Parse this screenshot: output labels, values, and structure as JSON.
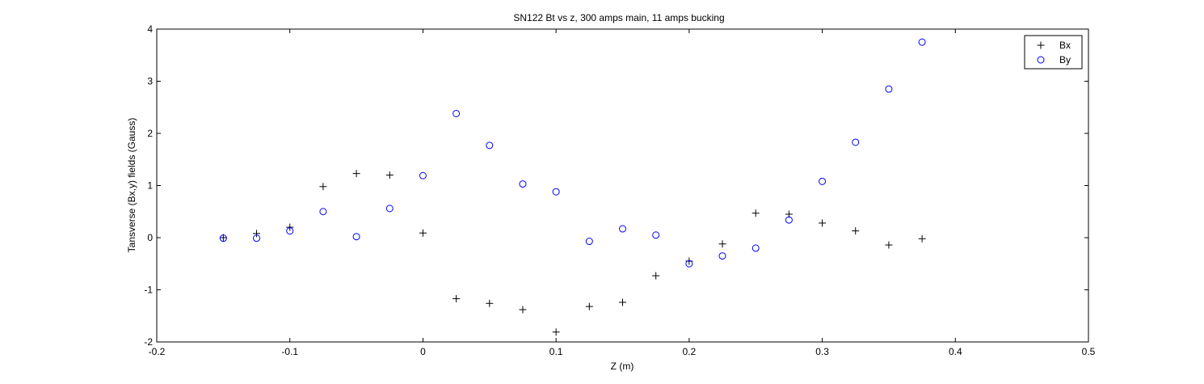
{
  "chart_data": {
    "type": "scatter",
    "title": "SN122 Bt vs z, 300 amps main, 11 amps bucking",
    "xlabel": "Z (m)",
    "ylabel": "Tansverse (Bx,y) fields  (Gauss)",
    "xlim": [
      -0.2,
      0.5
    ],
    "ylim": [
      -2,
      4
    ],
    "xticks": [
      -0.2,
      -0.1,
      0,
      0.1,
      0.2,
      0.3,
      0.4,
      0.5
    ],
    "yticks": [
      -2,
      -1,
      0,
      1,
      2,
      3,
      4
    ],
    "xtick_labels": [
      "-0.2",
      "-0.1",
      "0",
      "0.1",
      "0.2",
      "0.3",
      "0.4",
      "0.5"
    ],
    "ytick_labels": [
      "-2",
      "-1",
      "0",
      "1",
      "2",
      "3",
      "4"
    ],
    "grid": false,
    "legend_position": "top-right",
    "series": [
      {
        "name": "Bx",
        "marker": "plus",
        "color": "#000000",
        "x": [
          -0.15,
          -0.125,
          -0.1,
          -0.075,
          -0.05,
          -0.025,
          0,
          0.025,
          0.05,
          0.075,
          0.1,
          0.125,
          0.15,
          0.175,
          0.2,
          0.225,
          0.25,
          0.275,
          0.3,
          0.325,
          0.35,
          0.375
        ],
        "y": [
          0.0,
          0.08,
          0.2,
          0.98,
          1.23,
          1.2,
          0.09,
          -1.17,
          -1.26,
          -1.38,
          -1.81,
          -1.32,
          -1.24,
          -0.73,
          -0.45,
          -0.12,
          0.47,
          0.45,
          0.28,
          0.13,
          -0.14,
          -0.02
        ]
      },
      {
        "name": "By",
        "marker": "circle",
        "color": "#0000ff",
        "x": [
          -0.15,
          -0.125,
          -0.1,
          -0.075,
          -0.05,
          -0.025,
          0,
          0.025,
          0.05,
          0.075,
          0.1,
          0.125,
          0.15,
          0.175,
          0.2,
          0.225,
          0.25,
          0.275,
          0.3,
          0.325,
          0.35,
          0.375
        ],
        "y": [
          -0.01,
          -0.01,
          0.13,
          0.5,
          0.02,
          0.56,
          1.19,
          2.38,
          1.77,
          1.03,
          0.88,
          -0.07,
          0.17,
          0.05,
          -0.5,
          -0.35,
          -0.2,
          0.34,
          1.08,
          1.83,
          2.85,
          3.75
        ]
      }
    ]
  }
}
